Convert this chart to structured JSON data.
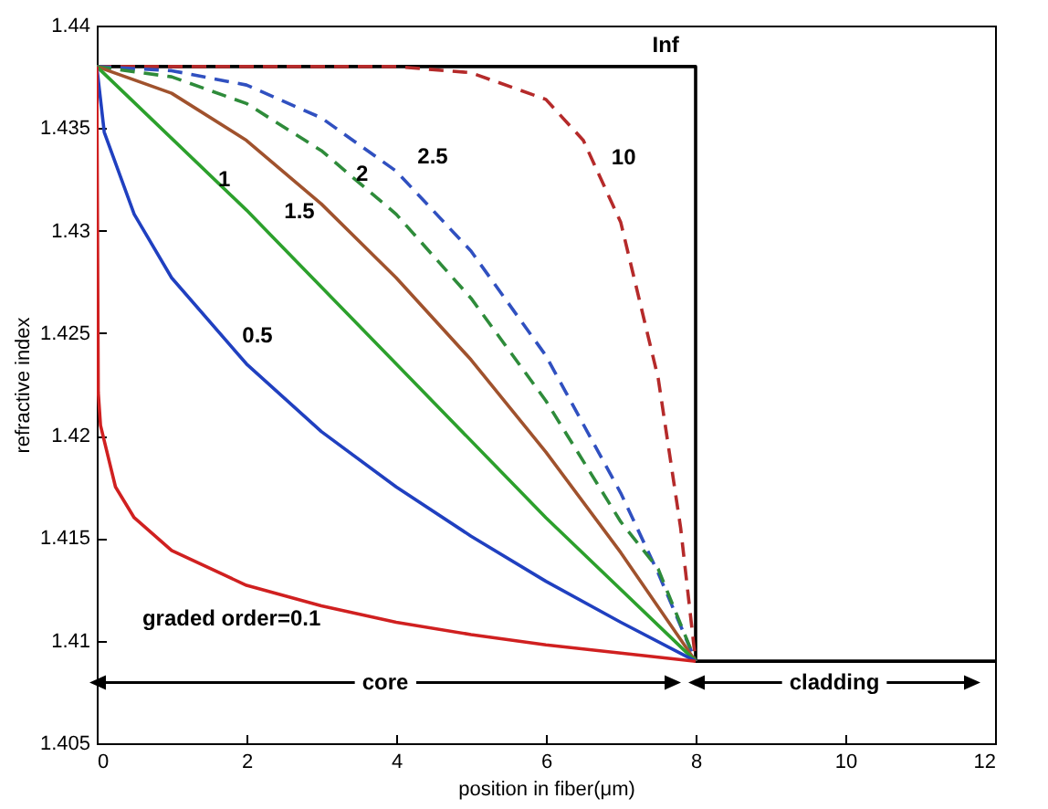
{
  "chart_data": {
    "type": "line",
    "xlabel": "position in fiber(μm)",
    "ylabel": "refractive index",
    "xlim": [
      0,
      12
    ],
    "xticks": [
      0,
      2,
      4,
      6,
      8,
      10,
      12
    ],
    "ylim": [
      1.405,
      1.44
    ],
    "yticks": [
      1.405,
      1.41,
      1.415,
      1.42,
      1.425,
      1.43,
      1.435,
      1.44
    ],
    "grid": false,
    "marker": "none",
    "series": [
      {
        "name": "Inf",
        "color": "#000000",
        "line_style": "solid",
        "x": [
          0,
          8,
          8,
          12
        ],
        "values": [
          1.438,
          1.438,
          1.409,
          1.409
        ]
      },
      {
        "name": "10",
        "color": "#b52a2a",
        "line_style": "dashed",
        "x": [
          0,
          4,
          5,
          6,
          6.5,
          7,
          7.5,
          7.8,
          8
        ],
        "values": [
          1.438,
          1.438,
          1.4377,
          1.4364,
          1.4344,
          1.4304,
          1.4228,
          1.4155,
          1.409
        ]
      },
      {
        "name": "2.5",
        "color": "#3050c0",
        "line_style": "dashed",
        "x": [
          0,
          1,
          2,
          3,
          4,
          5,
          6,
          7,
          7.5,
          8
        ],
        "values": [
          1.438,
          1.4378,
          1.4371,
          1.4355,
          1.4329,
          1.429,
          1.4239,
          1.4172,
          1.4133,
          1.409
        ]
      },
      {
        "name": "2",
        "color": "#2e8b3a",
        "line_style": "dashed",
        "x": [
          0,
          1,
          2,
          3,
          4,
          5,
          6,
          7,
          7.5,
          8
        ],
        "values": [
          1.438,
          1.4375,
          1.4362,
          1.4339,
          1.4308,
          1.4267,
          1.4217,
          1.4158,
          1.4135,
          1.409
        ]
      },
      {
        "name": "1.5",
        "color": "#a0522d",
        "line_style": "solid",
        "x": [
          0,
          1,
          2,
          3,
          4,
          5,
          6,
          7,
          8
        ],
        "values": [
          1.438,
          1.4367,
          1.4344,
          1.4313,
          1.4277,
          1.4237,
          1.4192,
          1.4143,
          1.409
        ]
      },
      {
        "name": "1",
        "color": "#2ca02c",
        "line_style": "solid",
        "x": [
          0,
          2,
          4,
          6,
          8
        ],
        "values": [
          1.438,
          1.431,
          1.4235,
          1.416,
          1.409
        ]
      },
      {
        "name": "0.5",
        "color": "#2040c0",
        "line_style": "solid",
        "x": [
          0,
          0.1,
          0.5,
          1,
          2,
          3,
          4,
          5,
          6,
          7,
          8
        ],
        "values": [
          1.438,
          1.4348,
          1.4308,
          1.4277,
          1.4235,
          1.4202,
          1.4175,
          1.4151,
          1.4129,
          1.4109,
          1.409
        ]
      },
      {
        "name": "graded order=0.1",
        "color": "#d02020",
        "line_style": "solid",
        "x": [
          0,
          0.02,
          0.05,
          0.25,
          0.5,
          1,
          2,
          3,
          4,
          5,
          6,
          7,
          8
        ],
        "values": [
          1.438,
          1.4221,
          1.4205,
          1.4175,
          1.416,
          1.4144,
          1.4127,
          1.4117,
          1.4109,
          1.4103,
          1.4098,
          1.4094,
          1.409
        ]
      }
    ],
    "annotations": [
      "core",
      "cladding"
    ]
  }
}
